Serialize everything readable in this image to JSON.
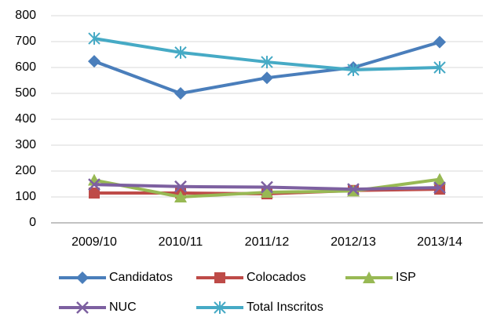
{
  "chart_data": {
    "type": "line",
    "categories": [
      "2009/10",
      "2010/11",
      "2011/12",
      "2012/13",
      "2013/14"
    ],
    "series": [
      {
        "name": "Candidatos",
        "color": "#4a7ebb",
        "values": [
          624,
          500,
          560,
          600,
          698
        ]
      },
      {
        "name": "Colocados",
        "color": "#be4b48",
        "values": [
          115,
          115,
          112,
          125,
          130
        ]
      },
      {
        "name": "ISP",
        "color": "#98b954",
        "values": [
          165,
          100,
          118,
          123,
          168
        ]
      },
      {
        "name": "NUC",
        "color": "#7d60a0",
        "values": [
          148,
          140,
          138,
          130,
          136
        ]
      },
      {
        "name": "Total Inscritos",
        "color": "#46aac5",
        "values": [
          712,
          658,
          621,
          591,
          600
        ]
      }
    ],
    "ylim": [
      0,
      800
    ],
    "yticks": [
      0,
      100,
      200,
      300,
      400,
      500,
      600,
      700,
      800
    ],
    "grid": true
  }
}
